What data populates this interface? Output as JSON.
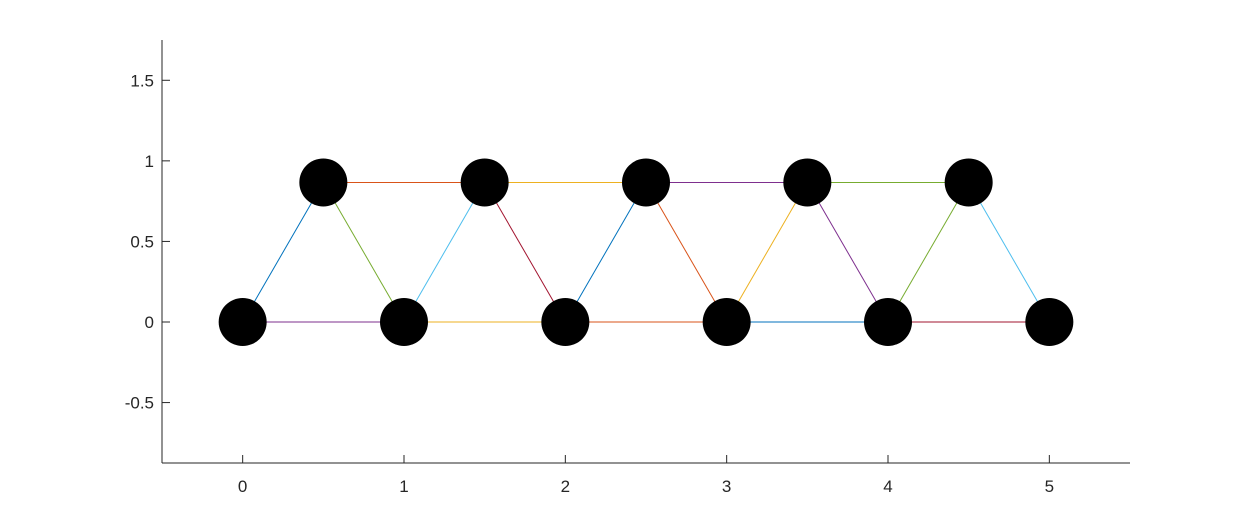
{
  "chart_data": {
    "type": "scatter",
    "title": "",
    "xlabel": "",
    "ylabel": "",
    "xlim": [
      -0.5,
      5.5
    ],
    "ylim": [
      -0.875,
      1.75
    ],
    "xticks": [
      0,
      1,
      2,
      3,
      4,
      5
    ],
    "xtick_labels": [
      "0",
      "1",
      "2",
      "3",
      "4",
      "5"
    ],
    "yticks": [
      -0.5,
      0,
      0.5,
      1,
      1.5
    ],
    "ytick_labels": [
      "-0.5",
      "0",
      "0.5",
      "1",
      "1.5"
    ],
    "grid": false,
    "box": "off",
    "nodes": [
      {
        "x": 0,
        "y": 0
      },
      {
        "x": 0.5,
        "y": 0.866
      },
      {
        "x": 1,
        "y": 0
      },
      {
        "x": 1.5,
        "y": 0.866
      },
      {
        "x": 2,
        "y": 0
      },
      {
        "x": 2.5,
        "y": 0.866
      },
      {
        "x": 3,
        "y": 0
      },
      {
        "x": 3.5,
        "y": 0.866
      },
      {
        "x": 4,
        "y": 0
      },
      {
        "x": 4.5,
        "y": 0.866
      },
      {
        "x": 5,
        "y": 0
      }
    ],
    "edges": [
      {
        "x": [
          0,
          0.5
        ],
        "y": [
          0,
          0.866
        ],
        "color": "#0072BD"
      },
      {
        "x": [
          0,
          1
        ],
        "y": [
          0,
          0
        ],
        "color": "#7E2F8E"
      },
      {
        "x": [
          0.5,
          1
        ],
        "y": [
          0.866,
          0
        ],
        "color": "#77AC30"
      },
      {
        "x": [
          0.5,
          1.5
        ],
        "y": [
          0.866,
          0.866
        ],
        "color": "#D95319"
      },
      {
        "x": [
          1,
          1.5
        ],
        "y": [
          0,
          0.866
        ],
        "color": "#4DBEEE"
      },
      {
        "x": [
          1,
          2
        ],
        "y": [
          0,
          0
        ],
        "color": "#EDB120"
      },
      {
        "x": [
          1.5,
          2
        ],
        "y": [
          0.866,
          0
        ],
        "color": "#A2142F"
      },
      {
        "x": [
          1.5,
          2.5
        ],
        "y": [
          0.866,
          0.866
        ],
        "color": "#EDB120"
      },
      {
        "x": [
          2,
          2.5
        ],
        "y": [
          0,
          0.866
        ],
        "color": "#0072BD"
      },
      {
        "x": [
          2,
          3
        ],
        "y": [
          0,
          0
        ],
        "color": "#D95319"
      },
      {
        "x": [
          2.5,
          3
        ],
        "y": [
          0.866,
          0
        ],
        "color": "#D95319"
      },
      {
        "x": [
          2.5,
          3.5
        ],
        "y": [
          0.866,
          0.866
        ],
        "color": "#7E2F8E"
      },
      {
        "x": [
          3,
          3.5
        ],
        "y": [
          0,
          0.866
        ],
        "color": "#EDB120"
      },
      {
        "x": [
          3,
          4
        ],
        "y": [
          0,
          0
        ],
        "color": "#0072BD"
      },
      {
        "x": [
          3.5,
          4
        ],
        "y": [
          0.866,
          0
        ],
        "color": "#7E2F8E"
      },
      {
        "x": [
          3.5,
          4.5
        ],
        "y": [
          0.866,
          0.866
        ],
        "color": "#77AC30"
      },
      {
        "x": [
          4,
          4.5
        ],
        "y": [
          0,
          0.866
        ],
        "color": "#77AC30"
      },
      {
        "x": [
          4,
          5
        ],
        "y": [
          0,
          0
        ],
        "color": "#A2142F"
      },
      {
        "x": [
          4.5,
          5
        ],
        "y": [
          0.866,
          0
        ],
        "color": "#4DBEEE"
      }
    ],
    "marker_color": "#000000"
  }
}
